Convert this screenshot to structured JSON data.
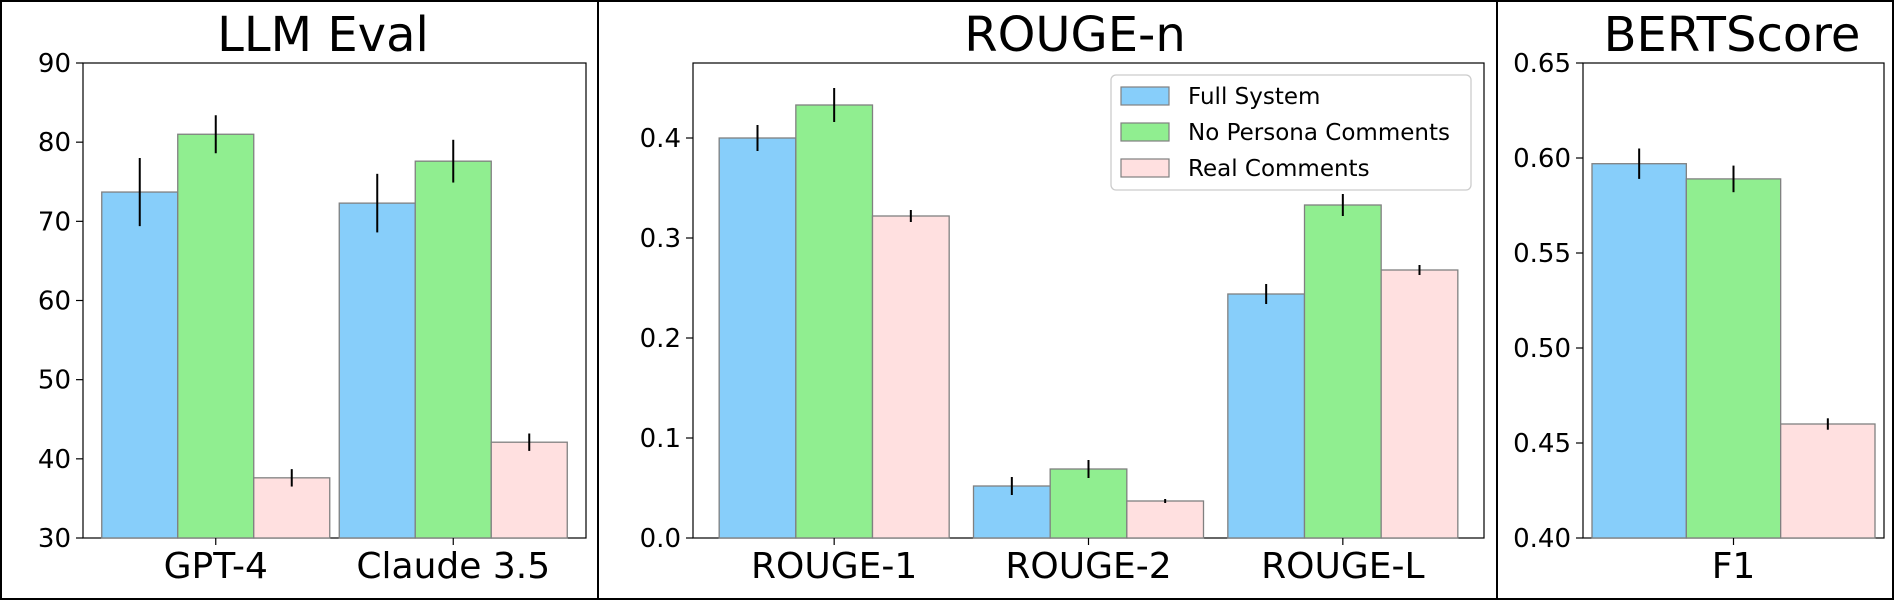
{
  "colors": {
    "full_system": "#87CEFA",
    "no_persona": "#90EE90",
    "real_comments": "#FFE0E0",
    "bar_edge": "#808080",
    "error_bar": "#000000"
  },
  "chart_data": [
    {
      "type": "bar",
      "title": "LLM Eval",
      "xlabel": "",
      "ylabel": "",
      "ylim": [
        30,
        90
      ],
      "yticks": [
        "30",
        "40",
        "50",
        "60",
        "70",
        "80",
        "90"
      ],
      "ytick_values": [
        30,
        40,
        50,
        60,
        70,
        80,
        90
      ],
      "categories": [
        "GPT-4",
        "Claude 3.5"
      ],
      "grid": false,
      "series": [
        {
          "values": [
            73.7,
            72.3
          ],
          "errors": [
            4.3,
            3.7
          ]
        },
        {
          "values": [
            81.0,
            77.6
          ],
          "errors": [
            2.4,
            2.7
          ]
        },
        {
          "values": [
            37.6,
            42.1
          ],
          "errors": [
            1.1,
            1.1
          ]
        }
      ]
    },
    {
      "type": "bar",
      "title": "ROUGE-n",
      "xlabel": "",
      "ylabel": "",
      "ylim": [
        0.0,
        0.475
      ],
      "yticks": [
        "0.0",
        "0.1",
        "0.2",
        "0.3",
        "0.4"
      ],
      "ytick_values": [
        0.0,
        0.1,
        0.2,
        0.3,
        0.4
      ],
      "categories": [
        "ROUGE-1",
        "ROUGE-2",
        "ROUGE-L"
      ],
      "grid": false,
      "legend": {
        "placement": "upper right",
        "entries": [
          "Full System",
          "No Persona Comments",
          "Real Comments"
        ]
      },
      "series": [
        {
          "name": "Full System",
          "values": [
            0.4,
            0.052,
            0.244
          ],
          "errors": [
            0.013,
            0.009,
            0.01
          ]
        },
        {
          "name": "No Persona Comments",
          "values": [
            0.433,
            0.069,
            0.333
          ],
          "errors": [
            0.017,
            0.009,
            0.011
          ]
        },
        {
          "name": "Real Comments",
          "values": [
            0.322,
            0.037,
            0.268
          ],
          "errors": [
            0.006,
            0.002,
            0.005
          ]
        }
      ]
    },
    {
      "type": "bar",
      "title": "BERTScore",
      "xlabel": "",
      "ylabel": "",
      "ylim": [
        0.4,
        0.65
      ],
      "yticks": [
        "0.40",
        "0.45",
        "0.50",
        "0.55",
        "0.60",
        "0.65"
      ],
      "ytick_values": [
        0.4,
        0.45,
        0.5,
        0.55,
        0.6,
        0.65
      ],
      "categories": [
        "F1"
      ],
      "grid": false,
      "series": [
        {
          "values": [
            0.597
          ],
          "errors": [
            0.008
          ]
        },
        {
          "values": [
            0.589
          ],
          "errors": [
            0.007
          ]
        },
        {
          "values": [
            0.46
          ],
          "errors": [
            0.003
          ]
        }
      ]
    }
  ]
}
